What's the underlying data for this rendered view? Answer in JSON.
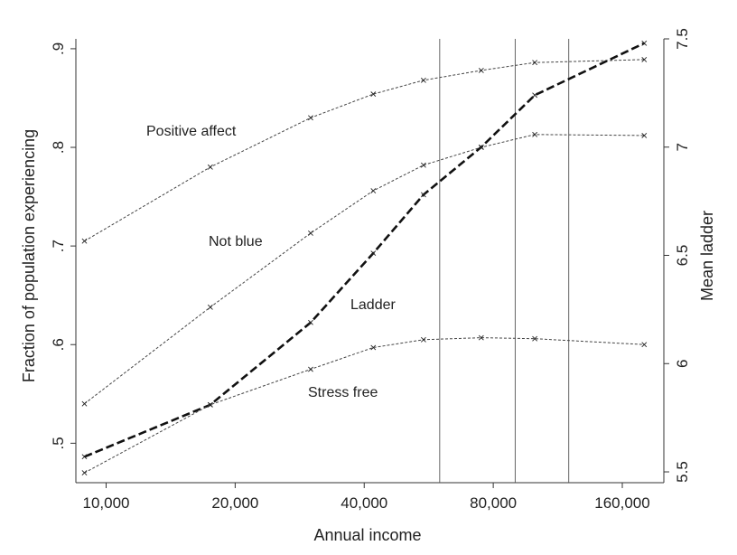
{
  "chart_data": {
    "type": "line",
    "xlabel": "Annual income",
    "ylabel_left": "Fraction of population experiencing",
    "ylabel_right": "Mean ladder",
    "x_scale": "log",
    "xlim": [
      8500,
      200000
    ],
    "ylim_left": [
      0.46,
      0.91
    ],
    "ylim_right": [
      5.45,
      7.5
    ],
    "x_ticks": [
      10000,
      20000,
      40000,
      80000,
      160000
    ],
    "x_tick_labels": [
      "10,000",
      "20,000",
      "40,000",
      "80,000",
      "160,000"
    ],
    "y_left_ticks": [
      0.5,
      0.6,
      0.7,
      0.8,
      0.9
    ],
    "y_left_tick_labels": [
      ".5",
      ".6",
      ".7",
      ".8",
      ".9"
    ],
    "y_right_ticks": [
      5.5,
      6,
      6.5,
      7,
      7.5
    ],
    "y_right_tick_labels": [
      "5.5",
      "6",
      "6.5",
      "7",
      "7.5"
    ],
    "vertical_lines_x": [
      60000,
      90000,
      120000
    ],
    "grid": false,
    "x": [
      8900,
      17500,
      30000,
      42000,
      55000,
      75000,
      100000,
      180000
    ],
    "series": [
      {
        "name": "Positive affect",
        "axis": "left",
        "style": "thin-dotted",
        "values": [
          0.705,
          0.78,
          0.83,
          0.854,
          0.868,
          0.878,
          0.886,
          0.889
        ]
      },
      {
        "name": "Not blue",
        "axis": "left",
        "style": "thin-dotted",
        "values": [
          0.54,
          0.638,
          0.713,
          0.756,
          0.782,
          0.8,
          0.813,
          0.812
        ]
      },
      {
        "name": "Ladder",
        "axis": "right",
        "style": "thick-dashed",
        "values": [
          5.57,
          5.81,
          6.19,
          6.51,
          6.78,
          7.0,
          7.24,
          7.48
        ]
      },
      {
        "name": "Stress free",
        "axis": "left",
        "style": "thin-dotted",
        "values": [
          0.47,
          0.539,
          0.575,
          0.597,
          0.605,
          0.607,
          0.606,
          0.6
        ]
      }
    ],
    "annotations": [
      {
        "text": "Positive affect",
        "series": "Positive affect"
      },
      {
        "text": "Not blue",
        "series": "Not blue"
      },
      {
        "text": "Ladder",
        "series": "Ladder"
      },
      {
        "text": "Stress free",
        "series": "Stress free"
      }
    ]
  }
}
